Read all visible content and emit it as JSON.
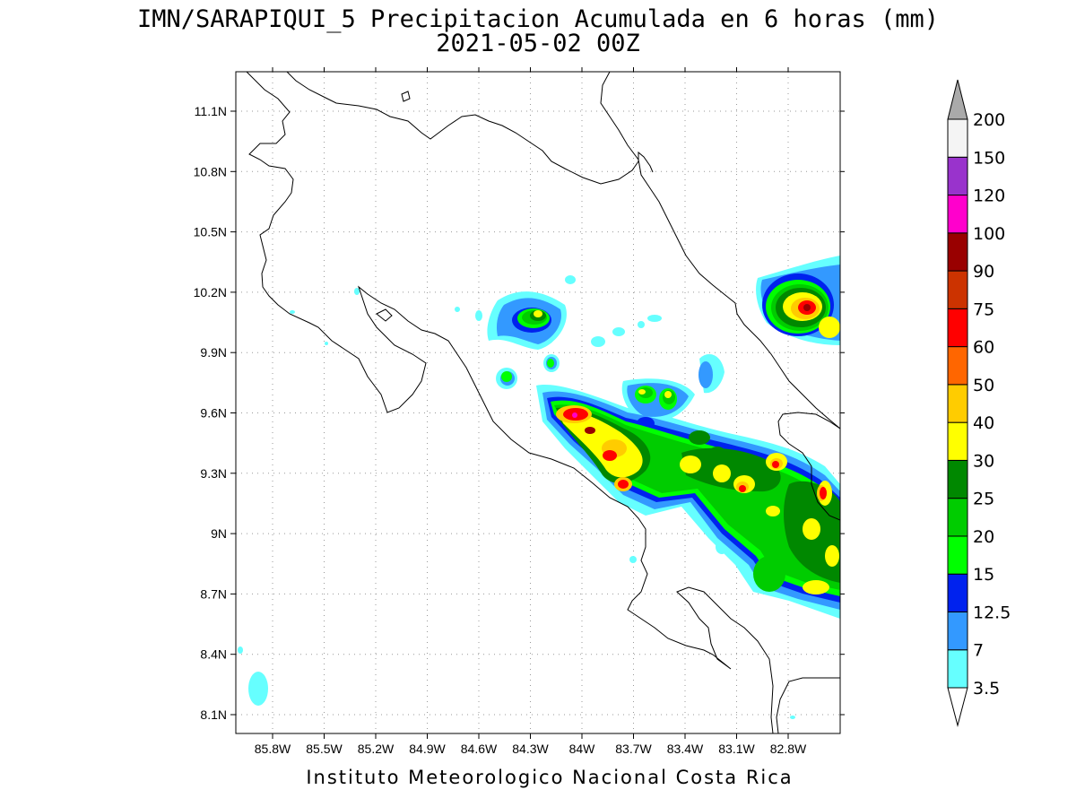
{
  "title_line1": "IMN/SARAPIQUI_5 Precipitacion Acumulada en 6 horas (mm)",
  "title_line2": "2021-05-02 00Z",
  "footer": "Instituto Meteorologico Nacional Costa Rica",
  "lon_ticks": [
    "85.8W",
    "85.5W",
    "85.2W",
    "84.9W",
    "84.6W",
    "84.3W",
    "84W",
    "83.7W",
    "83.4W",
    "83.1W",
    "82.8W"
  ],
  "lat_ticks": [
    "11.1N",
    "10.8N",
    "10.5N",
    "10.2N",
    "9.9N",
    "9.6N",
    "9.3N",
    "9N",
    "8.7N",
    "8.4N",
    "8.1N"
  ],
  "colorbar": {
    "labels": [
      "3.5",
      "7",
      "12.5",
      "15",
      "20",
      "25",
      "30",
      "40",
      "50",
      "60",
      "75",
      "90",
      "100",
      "120",
      "150",
      "200"
    ],
    "colors": [
      "#66ffff",
      "#3399ff",
      "#0022ee",
      "#00ff00",
      "#00cc00",
      "#008800",
      "#ffff00",
      "#ffcc00",
      "#ff6600",
      "#ff0000",
      "#cc3300",
      "#990000",
      "#ff00cc",
      "#9933cc",
      "#f4f4f4"
    ],
    "under_color": "#ffffff",
    "over_color": "#aaaaaa"
  }
}
